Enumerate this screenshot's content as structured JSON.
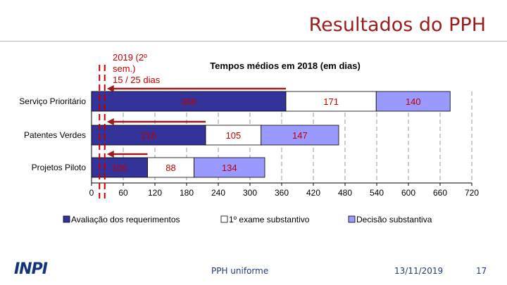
{
  "header": {
    "title": "Resultados do PPH"
  },
  "callout": {
    "line1": "2019 (2º",
    "line2": "sem.)",
    "line3": "15 / 25 dias"
  },
  "footer": {
    "logo_text": "INPI",
    "center": "PPH uniforme",
    "date": "13/11/2019",
    "page": "17"
  },
  "colors": {
    "series1": "#333399",
    "series2": "#ffffff",
    "series3": "#9999ff",
    "label": "#c00000",
    "title_color": "#9b1b1b",
    "footer_text": "#1f3a7a"
  },
  "chart_data": {
    "type": "bar",
    "orientation": "horizontal",
    "stacked": true,
    "title": "Tempos médios em 2018 (em dias)",
    "categories": [
      "Serviço Prioritário",
      "Patentes Verdes",
      "Projetos Piloto"
    ],
    "series": [
      {
        "name": "Avaliação dos requerimentos",
        "values": [
          368,
          216,
          106
        ]
      },
      {
        "name": "1º exame substantivo",
        "values": [
          171,
          105,
          88
        ]
      },
      {
        "name": "Decisão substantiva",
        "values": [
          140,
          147,
          134
        ]
      }
    ],
    "x_ticks": [
      0,
      60,
      120,
      180,
      240,
      300,
      360,
      420,
      480,
      540,
      600,
      660,
      720
    ],
    "xlim": [
      0,
      720
    ],
    "gridlines": "vertical dashed",
    "legend_position": "bottom"
  }
}
